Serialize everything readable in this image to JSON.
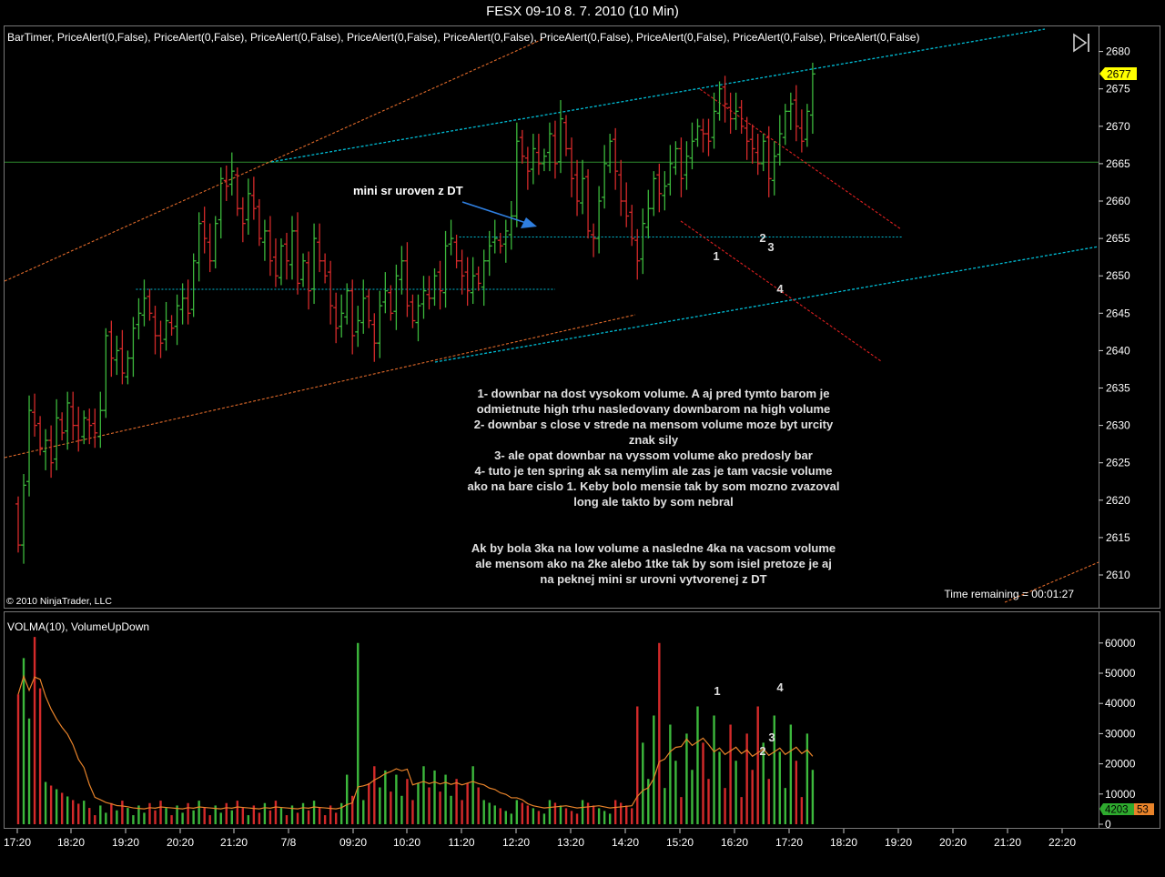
{
  "window": {
    "title": "FESX 09-10  8. 7. 2010 (10 Min)"
  },
  "price_panel": {
    "indicators_label": "BarTimer,  PriceAlert(0,False),  PriceAlert(0,False),  PriceAlert(0,False),  PriceAlert(0,False),  PriceAlert(0,False),  PriceAlert(0,False),  PriceAlert(0,False),  PriceAlert(0,False),  PriceAlert(0,False)",
    "copyright": "© 2010 NinjaTrader, LLC",
    "time_remaining": "Time remaining = 00:01:27",
    "last_price": "2677",
    "annotation_arrow_label": "mini sr uroven z DT",
    "commentary": [
      "1- downbar na dost vysokom volume. A aj pred tymto barom je",
      "odmietnute high trhu nasledovany downbarom na high volume",
      "2- downbar s close v strede na mensom volume moze byt urcity",
      "znak sily",
      "3- ale opat downbar na vyssom volume ako predosly bar",
      "4- tuto je ten spring ak sa nemylim ale zas je tam vacsie volume",
      "ako na bare cislo 1. Keby bolo mensie tak by som mozno zvazoval",
      "long ale takto by som nebral",
      "",
      "",
      "Ak by bola 3ka na low volume a nasledne 4ka na vacsom volume",
      "ale mensom ako na 2ke alebo 1tke tak by som isiel pretoze je aj",
      "na peknej mini sr urovni vytvorenej z DT"
    ]
  },
  "volume_panel": {
    "indicators_label": "VOLMA(10),  VolumeUpDown",
    "last_volume": "4203",
    "last_volma": "53"
  },
  "colors": {
    "up_bar": "#3cb83c",
    "down_bar": "#d42a2a",
    "channel_line": "#00bcd4",
    "trend_line": "#e06a2a",
    "red_dash": "#e02020",
    "horizontal_line": "#2e8b2e",
    "volma": "#e8832a",
    "last_price_badge": "#ffff00",
    "volume_badge": "#2eaa2e",
    "volma_badge": "#e8832a",
    "arrow": "#2f7fe0"
  },
  "chart_data": [
    {
      "type": "ohlc",
      "name": "price",
      "y_ticks": [
        2610,
        2615,
        2620,
        2625,
        2630,
        2635,
        2640,
        2645,
        2650,
        2655,
        2660,
        2665,
        2670,
        2675,
        2680
      ],
      "ylim": [
        2606.5,
        2683.5
      ],
      "x_tick_labels": [
        "17:20",
        "18:20",
        "19:20",
        "20:20",
        "21:20",
        "7/8",
        "09:20",
        "10:20",
        "11:20",
        "12:20",
        "13:20",
        "14:20",
        "15:20",
        "16:20",
        "17:20",
        "18:20",
        "19:20",
        "20:20",
        "21:20",
        "22:20"
      ],
      "close_prices": [
        2614,
        2622,
        2632,
        2630,
        2627,
        2628,
        2625,
        2631,
        2629,
        2633,
        2630,
        2628,
        2631,
        2630,
        2629,
        2632,
        2642,
        2639,
        2640,
        2637,
        2639,
        2643,
        2645,
        2647,
        2645,
        2642,
        2641,
        2644,
        2643,
        2646,
        2647,
        2645,
        2652,
        2657,
        2655,
        2652,
        2657,
        2663,
        2662,
        2664,
        2659,
        2657,
        2661,
        2659,
        2655,
        2656,
        2652,
        2650,
        2654,
        2652,
        2656,
        2649,
        2652,
        2648,
        2655,
        2652,
        2650,
        2646,
        2643,
        2645,
        2648,
        2642,
        2644,
        2647,
        2644,
        2641,
        2646,
        2648,
        2645,
        2650,
        2652,
        2646,
        2644,
        2646,
        2648,
        2647,
        2650,
        2648,
        2654,
        2655,
        2652,
        2650,
        2648,
        2650,
        2649,
        2652,
        2654,
        2655,
        2654,
        2656,
        2658,
        2668,
        2666,
        2664,
        2667,
        2665,
        2666,
        2669,
        2665,
        2671,
        2667,
        2663,
        2660,
        2663,
        2656,
        2655,
        2660,
        2665,
        2668,
        2664,
        2660,
        2658,
        2655,
        2652,
        2657,
        2659,
        2663,
        2661,
        2662,
        2665,
        2667,
        2663,
        2666,
        2668,
        2670,
        2669,
        2668,
        2672,
        2675,
        2673,
        2671,
        2672,
        2670,
        2668,
        2667,
        2665,
        2668,
        2663,
        2666,
        2669,
        2672,
        2673,
        2670,
        2668,
        2672,
        2677
      ],
      "horizontal_levels": [
        2665.2,
        2655.2,
        2648.2
      ],
      "point_labels": [
        "1",
        "2",
        "3",
        "4"
      ]
    },
    {
      "type": "bar",
      "name": "volume",
      "series": [
        "VolumeUpDown",
        "VOLMA(10)"
      ],
      "y_ticks": [
        0,
        10000,
        20000,
        30000,
        40000,
        50000,
        60000
      ],
      "ylim": [
        0,
        68000
      ],
      "point_labels": [
        "1",
        "2",
        "3",
        "4"
      ],
      "last_volume": 4203
    }
  ]
}
